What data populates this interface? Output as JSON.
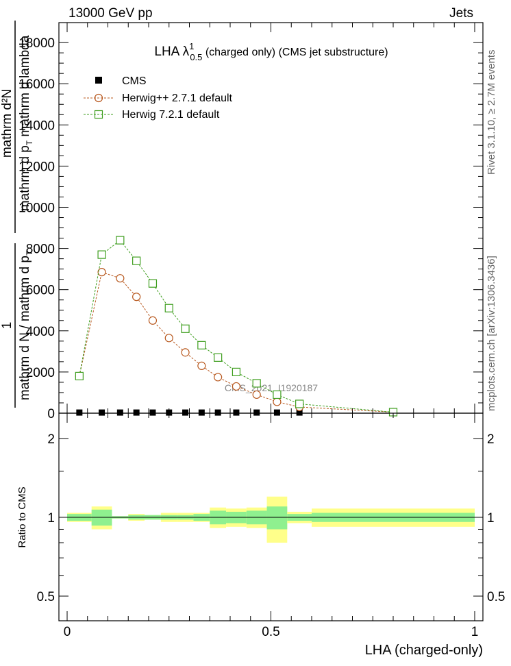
{
  "header": {
    "left": "13000 GeV pp",
    "right": "Jets"
  },
  "side_labels": {
    "rivet": "Rivet 3.1.10, ≥ 2.7M events",
    "mcplots": "mcplots.cern.ch [arXiv:1306.3436]"
  },
  "watermark": "CMS_2021_I1920187",
  "colors": {
    "cms": "#000000",
    "herwigpp": "#b8581e",
    "herwig7": "#3e9e1e",
    "band_inner": "#8ff08f",
    "band_outer": "#ffff8a"
  },
  "chart_data": [
    {
      "type": "line",
      "title": "LHA λ¹₀.₅ (charged only) (CMS jet substructure)",
      "title_parts": {
        "lambda": "LHA λ",
        "sup": "1",
        "sub": "0.5",
        "rest": " (charged only) (CMS jet substructure)"
      },
      "ylabel": "1 / mathrm d N / mathrm d p_T   mathrm d²N / mathrm d p_T mathrm d lambda",
      "ylabel_parts": {
        "num_1": "1",
        "den_1": "mathrm d N / mathrm d p",
        "den_1_sub": "T",
        "num_2": "mathrm d²N",
        "den_2": "mathrm d p",
        "den_2_sub": "T",
        "den_2_rest": " mathrm d lambda"
      },
      "xlim": [
        0,
        1
      ],
      "ylim": [
        0,
        19000
      ],
      "yticks": [
        0,
        2000,
        4000,
        6000,
        8000,
        10000,
        12000,
        14000,
        16000,
        18000
      ],
      "x_tick_labels": [
        "0",
        "0.5",
        "1"
      ],
      "y_tick_labels": [
        "0",
        "2000",
        "4000",
        "6000",
        "8000",
        "10000",
        "12000",
        "14000",
        "16000",
        "18000"
      ],
      "legend_position": "top-left",
      "series": [
        {
          "name": "CMS",
          "marker": "filled-square",
          "x": [
            0.03,
            0.085,
            0.13,
            0.17,
            0.21,
            0.25,
            0.29,
            0.33,
            0.37,
            0.415,
            0.465,
            0.515,
            0.57,
            0.8
          ],
          "y": [
            30,
            30,
            30,
            30,
            30,
            30,
            30,
            30,
            30,
            30,
            30,
            30,
            30,
            30
          ]
        },
        {
          "name": "Herwig++ 2.7.1 default",
          "marker": "open-circle",
          "x": [
            0.03,
            0.085,
            0.13,
            0.17,
            0.21,
            0.25,
            0.29,
            0.33,
            0.37,
            0.415,
            0.465,
            0.515,
            0.57,
            0.8
          ],
          "y": [
            1800,
            6850,
            6550,
            5650,
            4500,
            3650,
            2950,
            2300,
            1750,
            1300,
            900,
            550,
            300,
            50
          ]
        },
        {
          "name": "Herwig 7.2.1 default",
          "marker": "open-square",
          "x": [
            0.03,
            0.085,
            0.13,
            0.17,
            0.21,
            0.25,
            0.29,
            0.33,
            0.37,
            0.415,
            0.465,
            0.515,
            0.57,
            0.8
          ],
          "y": [
            1800,
            7700,
            8400,
            7400,
            6300,
            5100,
            4100,
            3300,
            2700,
            2000,
            1450,
            900,
            450,
            50
          ]
        }
      ]
    },
    {
      "type": "area",
      "ylabel": "Ratio to CMS",
      "xlabel": "LHA (charged-only)",
      "xlim": [
        0,
        1
      ],
      "ylim": [
        0.35,
        2.35
      ],
      "y_tick_labels": [
        "0.5",
        "1",
        "2"
      ],
      "yticks": [
        0.5,
        1,
        2
      ],
      "series": [
        {
          "name": "CMS uncertainty",
          "bin_edges": [
            0,
            0.06,
            0.11,
            0.15,
            0.19,
            0.23,
            0.27,
            0.31,
            0.35,
            0.39,
            0.44,
            0.49,
            0.54,
            0.6,
            1.0
          ],
          "inner": [
            [
              0.97,
              1.03
            ],
            [
              0.93,
              1.07
            ],
            [
              0.99,
              1.01
            ],
            [
              0.98,
              1.02
            ],
            [
              0.98,
              1.02
            ],
            [
              0.98,
              1.02
            ],
            [
              0.98,
              1.02
            ],
            [
              0.97,
              1.03
            ],
            [
              0.94,
              1.06
            ],
            [
              0.95,
              1.05
            ],
            [
              0.94,
              1.06
            ],
            [
              0.9,
              1.1
            ],
            [
              0.97,
              1.03
            ],
            [
              0.96,
              1.04
            ]
          ],
          "outer": [
            [
              0.96,
              1.04
            ],
            [
              0.9,
              1.1
            ],
            [
              0.99,
              1.01
            ],
            [
              0.97,
              1.03
            ],
            [
              0.98,
              1.02
            ],
            [
              0.96,
              1.04
            ],
            [
              0.96,
              1.04
            ],
            [
              0.96,
              1.04
            ],
            [
              0.91,
              1.09
            ],
            [
              0.92,
              1.08
            ],
            [
              0.91,
              1.09
            ],
            [
              0.8,
              1.2
            ],
            [
              0.95,
              1.05
            ],
            [
              0.92,
              1.08
            ]
          ]
        }
      ]
    }
  ]
}
